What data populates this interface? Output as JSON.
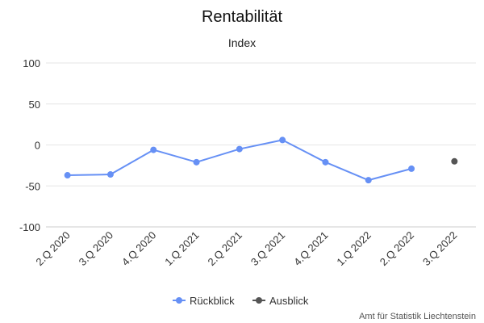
{
  "chart_data": {
    "type": "line",
    "title": "Rentabilität",
    "subtitle": "Index",
    "categories": [
      "2.Q 2020",
      "3.Q 2020",
      "4.Q 2020",
      "1.Q 2021",
      "2.Q 2021",
      "3.Q 2021",
      "4.Q 2021",
      "1.Q 2022",
      "2.Q 2022",
      "3.Q 2022"
    ],
    "ylim": [
      -100,
      100
    ],
    "yticks": [
      "100",
      "50",
      "0",
      "-50",
      "-100"
    ],
    "ytick_values": [
      100,
      50,
      0,
      -50,
      -100
    ],
    "grid": true,
    "legend_position": "bottom-center",
    "series": [
      {
        "name": "Rückblick",
        "color": "#6690f5",
        "values": [
          -37,
          -36,
          -6,
          -21,
          -5,
          6,
          -21,
          -43,
          -29,
          null
        ],
        "style": "line-with-markers"
      },
      {
        "name": "Ausblick",
        "color": "#555555",
        "values": [
          null,
          null,
          null,
          null,
          null,
          null,
          null,
          null,
          null,
          -20
        ],
        "style": "markers"
      }
    ],
    "credit": "Amt für Statistik Liechtenstein"
  }
}
